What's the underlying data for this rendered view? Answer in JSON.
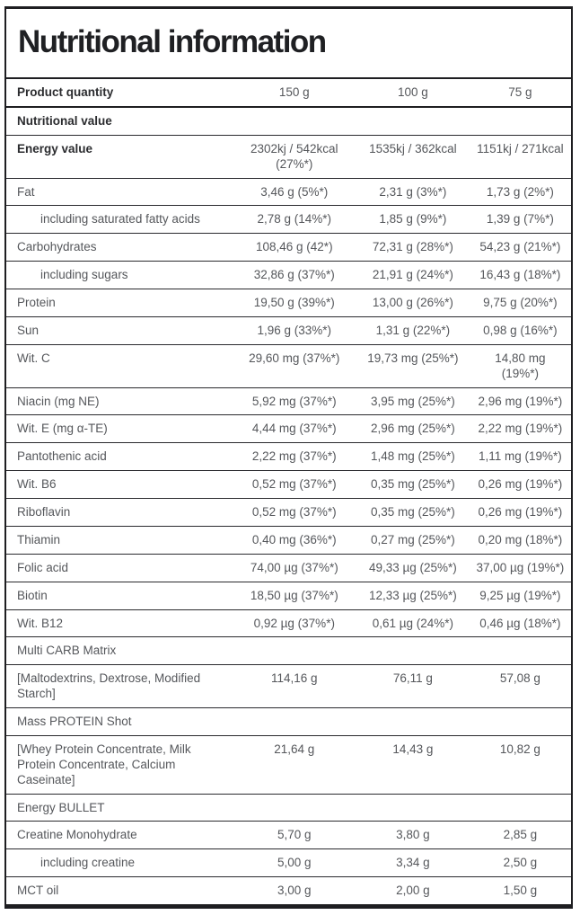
{
  "title": "Nutritional information",
  "colors": {
    "border": "#1e1e21",
    "text": "#55575b",
    "text_strong": "#2b2c2f",
    "background": "#ffffff"
  },
  "header": {
    "label": "Product quantity",
    "values": [
      "150 g",
      "100 g",
      "75 g"
    ]
  },
  "rows": [
    {
      "type": "section-bold",
      "label": "Nutritional value",
      "values": [
        "",
        "",
        ""
      ]
    },
    {
      "type": "bold",
      "label": "Energy value",
      "values": [
        "2302kj / 542kcal (27%*)",
        "1535kj / 362kcal",
        "1151kj / 271kcal"
      ]
    },
    {
      "type": "normal",
      "label": "Fat",
      "values": [
        "3,46 g (5%*)",
        "2,31 g (3%*)",
        "1,73 g (2%*)"
      ]
    },
    {
      "type": "indent",
      "label": "including saturated fatty acids",
      "values": [
        "2,78 g (14%*)",
        "1,85 g (9%*)",
        "1,39 g (7%*)"
      ]
    },
    {
      "type": "normal",
      "label": "Carbohydrates",
      "values": [
        "108,46 g (42*)",
        "72,31 g (28%*)",
        "54,23 g (21%*)"
      ]
    },
    {
      "type": "indent",
      "label": "including sugars",
      "values": [
        "32,86 g (37%*)",
        "21,91 g (24%*)",
        "16,43 g (18%*)"
      ]
    },
    {
      "type": "normal",
      "label": "Protein",
      "values": [
        "19,50 g (39%*)",
        "13,00 g (26%*)",
        "9,75 g (20%*)"
      ]
    },
    {
      "type": "normal",
      "label": "Sun",
      "values": [
        "1,96 g (33%*)",
        "1,31 g (22%*)",
        "0,98 g (16%*)"
      ]
    },
    {
      "type": "normal",
      "label": "Wit. C",
      "values": [
        "29,60 mg (37%*)",
        "19,73 mg (25%*)",
        "14,80 mg (19%*)"
      ]
    },
    {
      "type": "normal",
      "label": "Niacin (mg NE)",
      "values": [
        "5,92 mg (37%*)",
        "3,95 mg (25%*)",
        "2,96 mg (19%*)"
      ]
    },
    {
      "type": "normal",
      "label": "Wit. E (mg α-TE)",
      "values": [
        "4,44 mg (37%*)",
        "2,96 mg (25%*)",
        "2,22 mg (19%*)"
      ]
    },
    {
      "type": "normal",
      "label": "Pantothenic acid",
      "values": [
        "2,22 mg (37%*)",
        "1,48 mg (25%*)",
        "1,11 mg (19%*)"
      ]
    },
    {
      "type": "normal",
      "label": "Wit. B6",
      "values": [
        "0,52 mg (37%*)",
        "0,35 mg (25%*)",
        "0,26 mg (19%*)"
      ]
    },
    {
      "type": "normal",
      "label": "Riboflavin",
      "values": [
        "0,52 mg (37%*)",
        "0,35 mg (25%*)",
        "0,26 mg (19%*)"
      ]
    },
    {
      "type": "normal",
      "label": "Thiamin",
      "values": [
        "0,40 mg (36%*)",
        "0,27 mg (25%*)",
        "0,20 mg (18%*)"
      ]
    },
    {
      "type": "normal",
      "label": "Folic acid",
      "values": [
        "74,00 µg (37%*)",
        "49,33 µg (25%*)",
        "37,00 µg (19%*)"
      ]
    },
    {
      "type": "normal",
      "label": "Biotin",
      "values": [
        "18,50 µg (37%*)",
        "12,33 µg (25%*)",
        "9,25 µg (19%*)"
      ]
    },
    {
      "type": "normal",
      "label": "Wit. B12",
      "values": [
        "0,92 µg (37%*)",
        "0,61 µg (24%*)",
        "0,46 µg (18%*)"
      ]
    },
    {
      "type": "section",
      "label": "Multi CARB Matrix",
      "values": [
        "",
        "",
        ""
      ]
    },
    {
      "type": "normal",
      "label": "[Maltodextrins, Dextrose, Modified Starch]",
      "values": [
        "114,16 g",
        "76,11 g",
        "57,08 g"
      ]
    },
    {
      "type": "section",
      "label": "Mass PROTEIN Shot",
      "values": [
        "",
        "",
        ""
      ]
    },
    {
      "type": "normal",
      "label": "[Whey Protein Concentrate, Milk Protein Concentrate, Calcium Caseinate]",
      "values": [
        "21,64 g",
        "14,43 g",
        "10,82 g"
      ]
    },
    {
      "type": "section",
      "label": "Energy BULLET",
      "values": [
        "",
        "",
        ""
      ]
    },
    {
      "type": "normal",
      "label": "Creatine Monohydrate",
      "values": [
        "5,70 g",
        "3,80 g",
        "2,85 g"
      ]
    },
    {
      "type": "indent",
      "label": "including creatine",
      "values": [
        "5,00 g",
        "3,34 g",
        "2,50 g"
      ]
    },
    {
      "type": "normal",
      "label": "MCT oil",
      "values": [
        "3,00 g",
        "2,00 g",
        "1,50 g"
      ]
    }
  ]
}
